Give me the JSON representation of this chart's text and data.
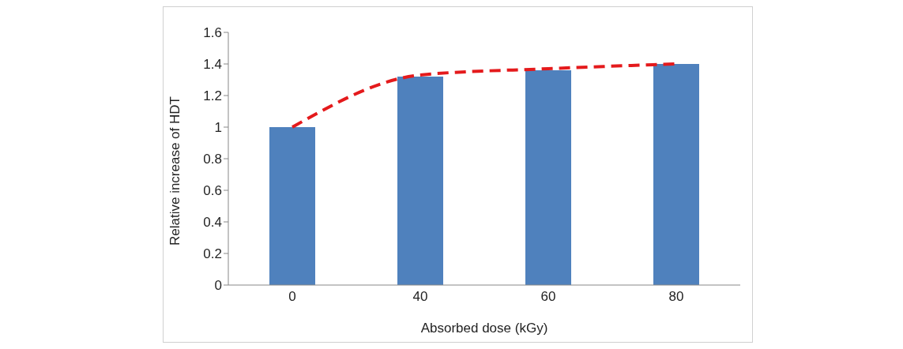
{
  "chart_data": {
    "type": "bar",
    "xlabel": "Absorbed dose (kGy)",
    "ylabel": "Relative increase of HDT",
    "categories": [
      "0",
      "40",
      "60",
      "80"
    ],
    "series": [
      {
        "color": "#4f81bd",
        "values": [
          1.0,
          1.32,
          1.36,
          1.4
        ]
      },
      {
        "type": "line",
        "color": "#e41a1c",
        "x": [
          "0",
          "40",
          "60",
          "80"
        ],
        "values": [
          1.0,
          1.33,
          1.37,
          1.4
        ],
        "line_style": "dashed",
        "marker": "none"
      }
    ],
    "ylim": [
      0,
      1.6
    ],
    "yticks": [
      0,
      0.2,
      0.4,
      0.6,
      0.8,
      1,
      1.2,
      1.4,
      1.6
    ],
    "grid": false,
    "legend": false
  }
}
